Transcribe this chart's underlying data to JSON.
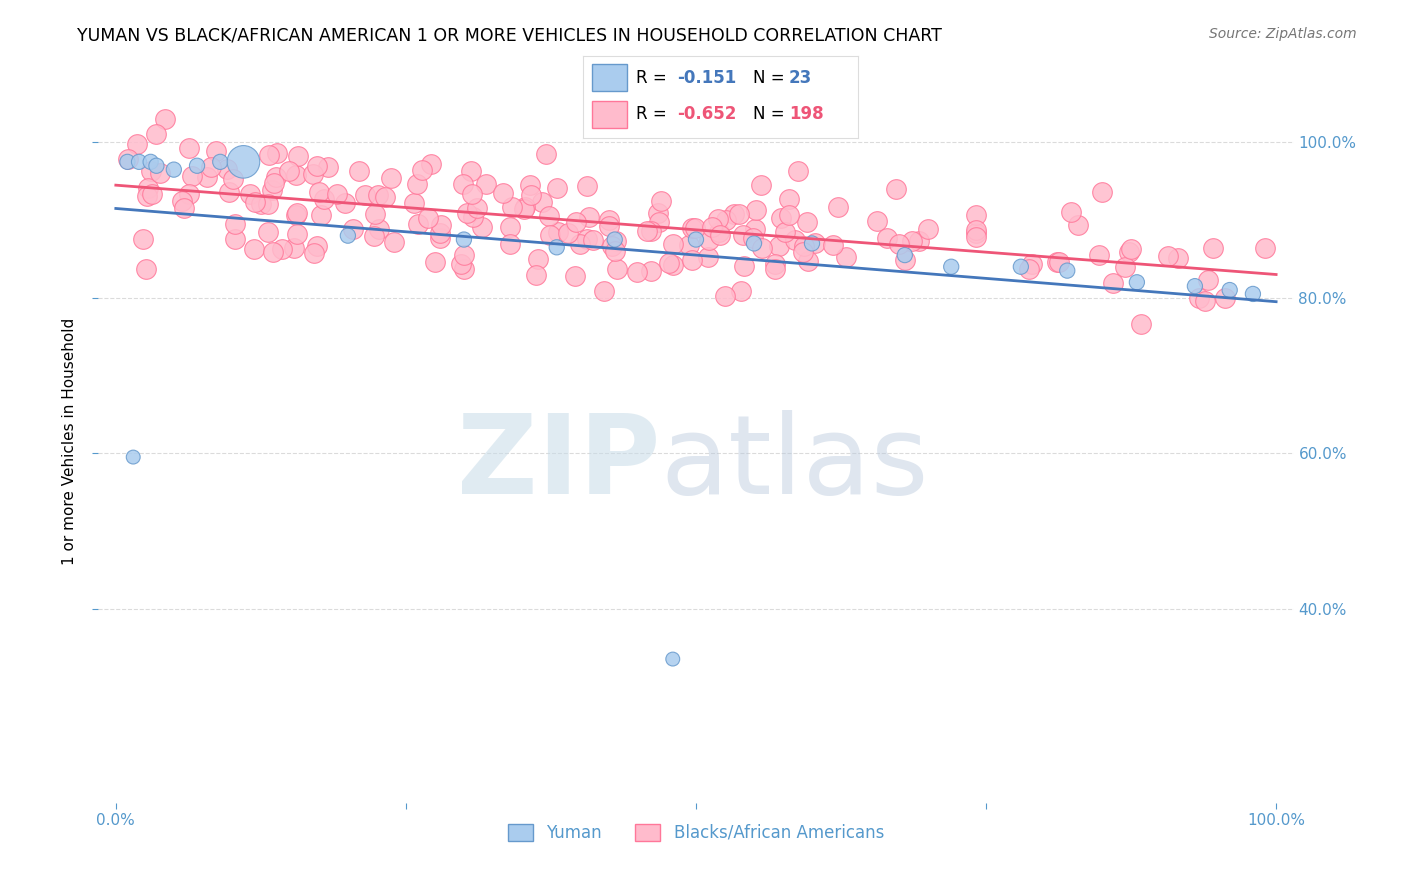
{
  "title": "YUMAN VS BLACK/AFRICAN AMERICAN 1 OR MORE VEHICLES IN HOUSEHOLD CORRELATION CHART",
  "source": "Source: ZipAtlas.com",
  "ylabel": "1 or more Vehicles in Household",
  "xlim": [
    0.0,
    1.0
  ],
  "ylim": [
    0.15,
    1.08
  ],
  "blue_R": -0.151,
  "blue_N": 23,
  "pink_R": -0.652,
  "pink_N": 198,
  "blue_color": "#6699CC",
  "blue_fill": "#AACCEE",
  "pink_color": "#FF7799",
  "pink_fill": "#FFBBCC",
  "blue_line_color": "#4477BB",
  "pink_line_color": "#EE5577",
  "legend_label_blue": "Yuman",
  "legend_label_pink": "Blacks/African Americans",
  "tick_color": "#5599CC",
  "grid_color": "#CCCCCC",
  "blue_line_y0": 0.915,
  "blue_line_y1": 0.795,
  "pink_line_y0": 0.945,
  "pink_line_y1": 0.83
}
